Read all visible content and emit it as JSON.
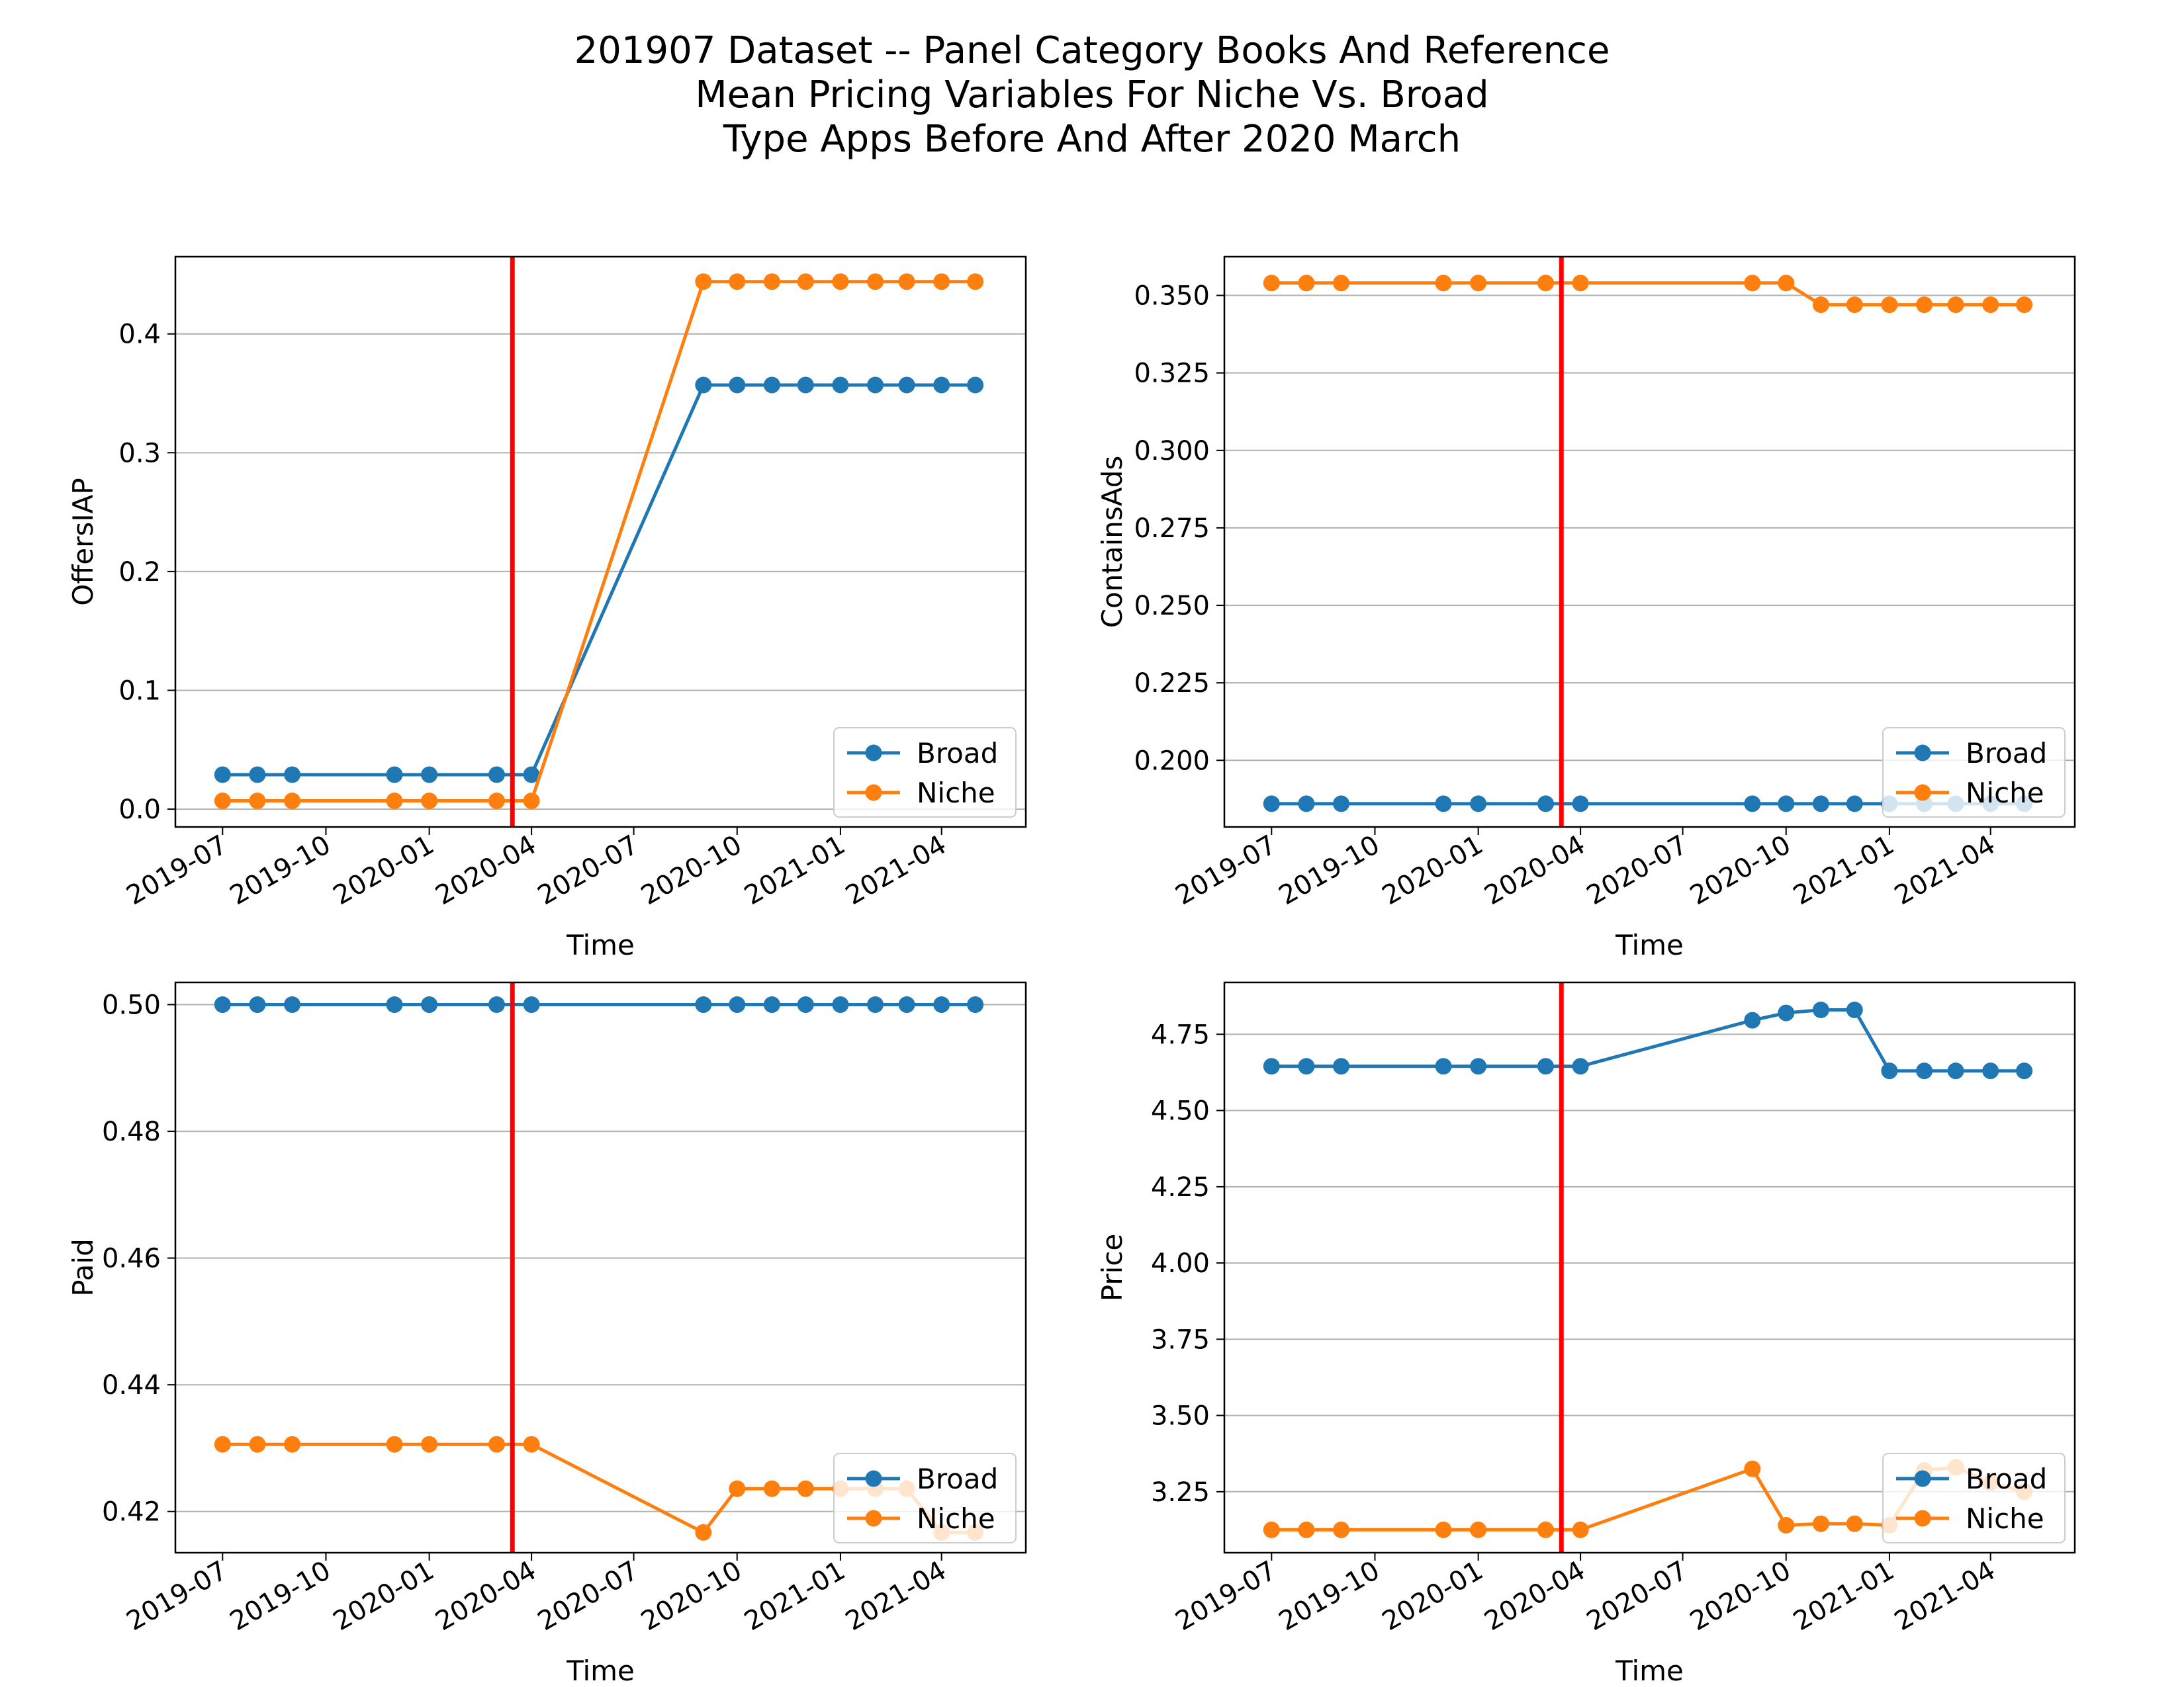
{
  "figure": {
    "title_lines": [
      "201907 Dataset -- Panel Category Books And Reference",
      "Mean Pricing Variables For Niche Vs. Broad",
      "Type Apps Before And After 2020 March"
    ]
  },
  "colors": {
    "broad": "#1f77b4",
    "niche": "#ff7f0e",
    "event_line": "#ff0000",
    "grid": "#b0b0b0"
  },
  "chart_data": [
    {
      "type": "line",
      "ylabel": "OffersIAP",
      "xlabel": "Time",
      "x_ticks": [
        "2019-07",
        "2019-10",
        "2020-01",
        "2020-04",
        "2020-07",
        "2020-10",
        "2021-01",
        "2021-04"
      ],
      "x": [
        "2019-07",
        "2019-08",
        "2019-09",
        "2019-12",
        "2020-01",
        "2020-03",
        "2020-04",
        "2020-09",
        "2020-10",
        "2020-11",
        "2020-12",
        "2021-01",
        "2021-02",
        "2021-03",
        "2021-04",
        "2021-05"
      ],
      "series": [
        {
          "name": "Broad",
          "values": [
            0.029,
            0.029,
            0.029,
            0.029,
            0.029,
            0.029,
            0.029,
            0.357,
            0.357,
            0.357,
            0.357,
            0.357,
            0.357,
            0.357,
            0.357,
            0.357
          ]
        },
        {
          "name": "Niche",
          "values": [
            0.007,
            0.007,
            0.007,
            0.007,
            0.007,
            0.007,
            0.007,
            0.444,
            0.444,
            0.444,
            0.444,
            0.444,
            0.444,
            0.444,
            0.444,
            0.444
          ]
        }
      ],
      "event_x": "2020-03-15",
      "ylim": [
        -0.015,
        0.465
      ],
      "y_ticks": [
        0.0,
        0.1,
        0.2,
        0.3,
        0.4
      ],
      "y_tick_labels": [
        "0.0",
        "0.1",
        "0.2",
        "0.3",
        "0.4"
      ],
      "grid": "y",
      "legend": "lower-right"
    },
    {
      "type": "line",
      "ylabel": "ContainsAds",
      "xlabel": "Time",
      "x_ticks": [
        "2019-07",
        "2019-10",
        "2020-01",
        "2020-04",
        "2020-07",
        "2020-10",
        "2021-01",
        "2021-04"
      ],
      "x": [
        "2019-07",
        "2019-08",
        "2019-09",
        "2019-12",
        "2020-01",
        "2020-03",
        "2020-04",
        "2020-09",
        "2020-10",
        "2020-11",
        "2020-12",
        "2021-01",
        "2021-02",
        "2021-03",
        "2021-04",
        "2021-05"
      ],
      "series": [
        {
          "name": "Broad",
          "values": [
            0.186,
            0.186,
            0.186,
            0.186,
            0.186,
            0.186,
            0.186,
            0.186,
            0.186,
            0.186,
            0.186,
            0.186,
            0.186,
            0.186,
            0.186,
            0.186
          ]
        },
        {
          "name": "Niche",
          "values": [
            0.354,
            0.354,
            0.354,
            0.354,
            0.354,
            0.354,
            0.354,
            0.354,
            0.354,
            0.347,
            0.347,
            0.347,
            0.347,
            0.347,
            0.347,
            0.347
          ]
        }
      ],
      "event_x": "2020-03-15",
      "ylim": [
        0.1785,
        0.3625
      ],
      "y_ticks": [
        0.2,
        0.225,
        0.25,
        0.275,
        0.3,
        0.325,
        0.35
      ],
      "y_tick_labels": [
        "0.200",
        "0.225",
        "0.250",
        "0.275",
        "0.300",
        "0.325",
        "0.350"
      ],
      "grid": "y",
      "legend": "lower-right"
    },
    {
      "type": "line",
      "ylabel": "Paid",
      "xlabel": "Time",
      "x_ticks": [
        "2019-07",
        "2019-10",
        "2020-01",
        "2020-04",
        "2020-07",
        "2020-10",
        "2021-01",
        "2021-04"
      ],
      "x": [
        "2019-07",
        "2019-08",
        "2019-09",
        "2019-12",
        "2020-01",
        "2020-03",
        "2020-04",
        "2020-09",
        "2020-10",
        "2020-11",
        "2020-12",
        "2021-01",
        "2021-02",
        "2021-03",
        "2021-04",
        "2021-05"
      ],
      "series": [
        {
          "name": "Broad",
          "values": [
            0.5,
            0.5,
            0.5,
            0.5,
            0.5,
            0.5,
            0.5,
            0.5,
            0.5,
            0.5,
            0.5,
            0.5,
            0.5,
            0.5,
            0.5,
            0.5
          ]
        },
        {
          "name": "Niche",
          "values": [
            0.4306,
            0.4306,
            0.4306,
            0.4306,
            0.4306,
            0.4306,
            0.4306,
            0.4167,
            0.4236,
            0.4236,
            0.4236,
            0.4236,
            0.4236,
            0.4236,
            0.4167,
            0.4167
          ]
        }
      ],
      "event_x": "2020-03-15",
      "ylim": [
        0.4135,
        0.5035
      ],
      "y_ticks": [
        0.42,
        0.44,
        0.46,
        0.48,
        0.5
      ],
      "y_tick_labels": [
        "0.42",
        "0.44",
        "0.46",
        "0.48",
        "0.50"
      ],
      "grid": "y",
      "legend": "lower-right"
    },
    {
      "type": "line",
      "ylabel": "Price",
      "xlabel": "Time",
      "x_ticks": [
        "2019-07",
        "2019-10",
        "2020-01",
        "2020-04",
        "2020-07",
        "2020-10",
        "2021-01",
        "2021-04"
      ],
      "x": [
        "2019-07",
        "2019-08",
        "2019-09",
        "2019-12",
        "2020-01",
        "2020-03",
        "2020-04",
        "2020-09",
        "2020-10",
        "2020-11",
        "2020-12",
        "2021-01",
        "2021-02",
        "2021-03",
        "2021-04",
        "2021-05"
      ],
      "series": [
        {
          "name": "Broad",
          "values": [
            4.645,
            4.645,
            4.645,
            4.645,
            4.645,
            4.645,
            4.645,
            4.796,
            4.82,
            4.83,
            4.83,
            4.63,
            4.63,
            4.63,
            4.63,
            4.63
          ]
        },
        {
          "name": "Niche",
          "values": [
            3.125,
            3.125,
            3.125,
            3.125,
            3.125,
            3.125,
            3.125,
            3.325,
            3.14,
            3.145,
            3.145,
            3.14,
            3.32,
            3.33,
            3.28,
            3.25
          ]
        }
      ],
      "event_x": "2020-03-15",
      "ylim": [
        3.05,
        4.92
      ],
      "y_ticks": [
        3.25,
        3.5,
        3.75,
        4.0,
        4.25,
        4.5,
        4.75
      ],
      "y_tick_labels": [
        "3.25",
        "3.50",
        "3.75",
        "4.00",
        "4.25",
        "4.50",
        "4.75"
      ],
      "grid": "y",
      "legend": "lower-right"
    }
  ]
}
